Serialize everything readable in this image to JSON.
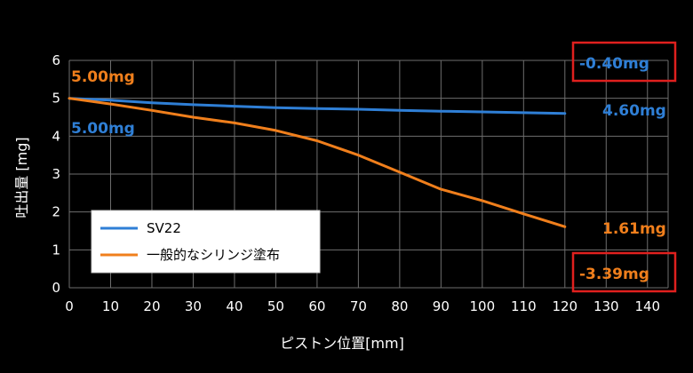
{
  "chart_data": {
    "type": "line",
    "xlabel": "ピストン位置[mm]",
    "ylabel": "吐出量 [mg]",
    "xlim": [
      0,
      145
    ],
    "ylim": [
      0,
      6
    ],
    "x_ticks": [
      "0",
      "10",
      "20",
      "30",
      "40",
      "50",
      "60",
      "70",
      "80",
      "90",
      "100",
      "110",
      "120",
      "130",
      "140"
    ],
    "y_ticks": [
      "0",
      "1",
      "2",
      "3",
      "4",
      "5",
      "6"
    ],
    "grid": true,
    "legend_placement": "lower-left",
    "series": [
      {
        "name": "SV22",
        "color": "#2f7fd6",
        "x": [
          0,
          10,
          20,
          30,
          40,
          50,
          60,
          70,
          80,
          90,
          100,
          110,
          120
        ],
        "y": [
          5.0,
          4.95,
          4.88,
          4.83,
          4.79,
          4.75,
          4.73,
          4.71,
          4.68,
          4.66,
          4.64,
          4.62,
          4.6
        ]
      },
      {
        "name": "一般的なシリンジ塗布",
        "color": "#f07f1c",
        "x": [
          0,
          10,
          20,
          30,
          40,
          50,
          60,
          70,
          80,
          90,
          100,
          110,
          120
        ],
        "y": [
          5.0,
          4.85,
          4.68,
          4.5,
          4.35,
          4.15,
          3.88,
          3.5,
          3.05,
          2.6,
          2.3,
          1.95,
          1.61
        ]
      }
    ],
    "annotations": {
      "orange_start": "5.00mg",
      "blue_start": "5.00mg",
      "blue_end": "4.60mg",
      "orange_end": "1.61mg",
      "blue_diff": "-0.40mg",
      "orange_diff": "-3.39mg"
    },
    "highlight_color": "#e0201e"
  }
}
